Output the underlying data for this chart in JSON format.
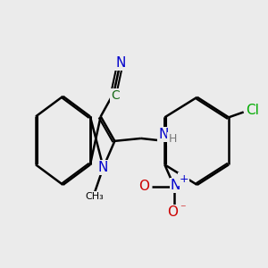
{
  "bg_color": "#ebebeb",
  "bond_color": "#000000",
  "atom_colors": {
    "N": "#0000cc",
    "C": "#1a6b1a",
    "O": "#cc0000",
    "Cl": "#00aa00",
    "H": "#555555"
  },
  "font_size": 9
}
